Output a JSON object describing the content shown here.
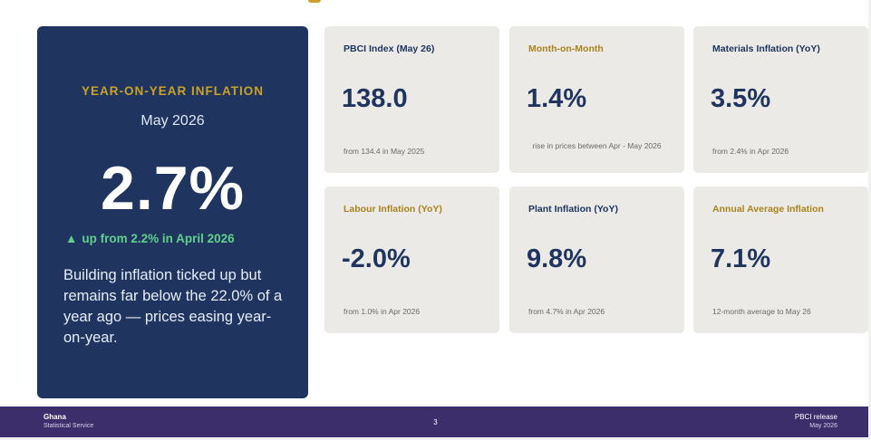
{
  "hero": {
    "kicker": "YEAR-ON-YEAR INFLATION",
    "period": "May 2026",
    "value": "2.7%",
    "delta_icon": "up-triangle-icon",
    "delta_text": "up from 2.2% in April 2026",
    "note": "Building inflation ticked up but remains far below the 22.0% of a year ago — prices easing  year-on-year."
  },
  "cards": [
    {
      "label": "PBCI Index (May 26)",
      "value": "138.0",
      "sub": "from 134.4 in May 2025"
    },
    {
      "label": "Month-on-Month",
      "value": "1.4%",
      "sub": "rise in prices between Apr - May 2026"
    },
    {
      "label": "Materials Inflation (YoY)",
      "value": "3.5%",
      "sub": "from 2.4% in Apr 2026"
    },
    {
      "label": "Labour Inflation (YoY)",
      "value": "-2.0%",
      "sub": "from 1.0% in Apr 2026"
    },
    {
      "label": "Plant Inflation (YoY)",
      "value": "9.8%",
      "sub": "from 4.7% in Apr 2026"
    },
    {
      "label": "Annual Average Inflation",
      "value": "7.1%",
      "sub": "12-month average to May 26"
    }
  ],
  "footer": {
    "org_line1": "Ghana",
    "org_line2": "Statistical Service",
    "page": "3",
    "right_line1": "PBCI release",
    "right_line2": "May 2026"
  },
  "colors": {
    "navy": "#1f3560",
    "gold": "#c9a227",
    "green": "#5fd08a",
    "card_bg": "#eceae6",
    "footer_bg": "#3c2d6b"
  }
}
